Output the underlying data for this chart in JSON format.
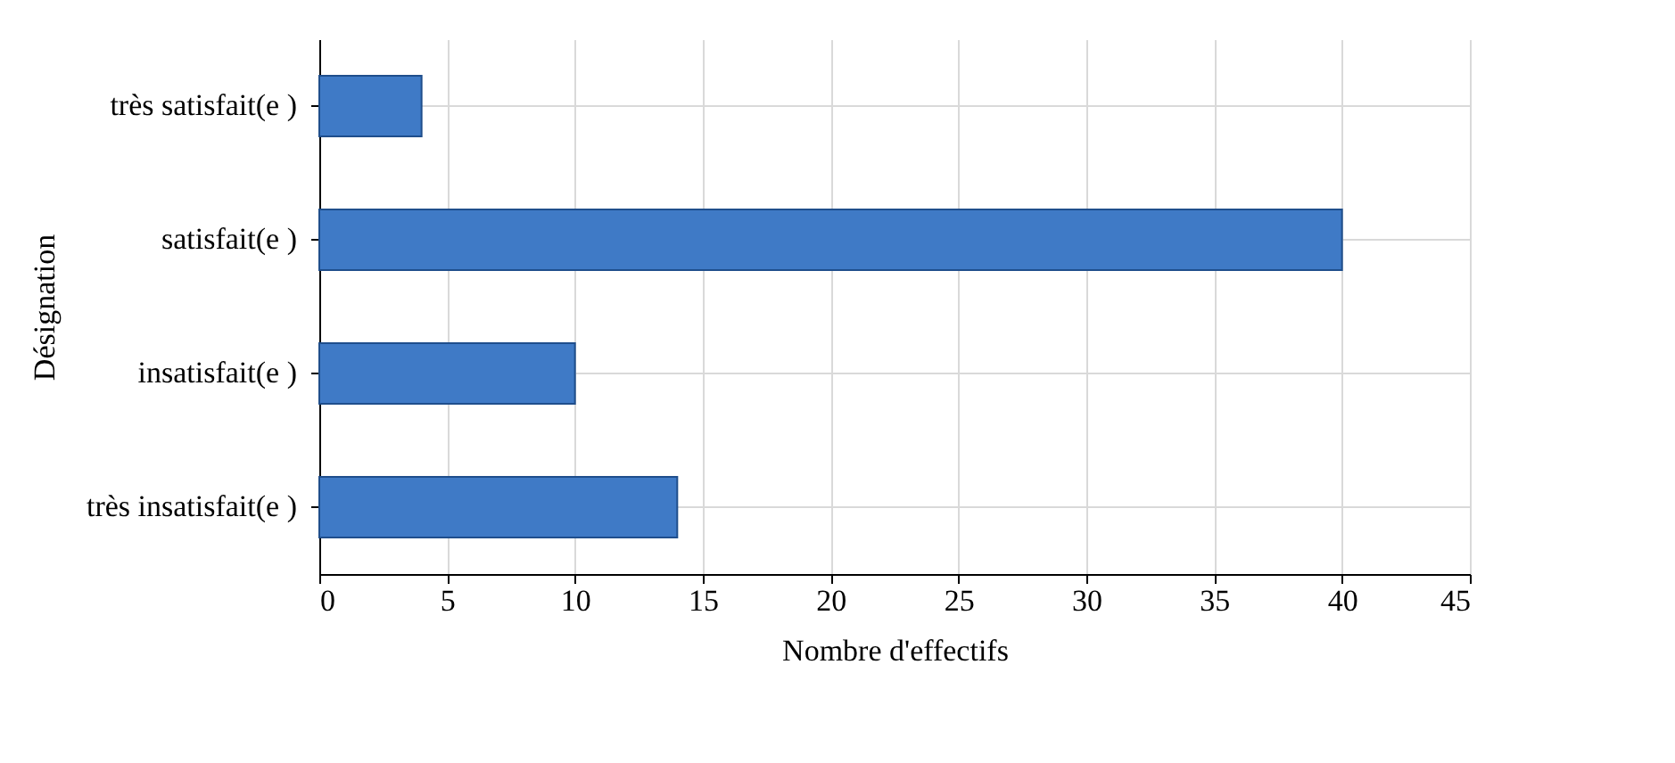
{
  "chart_data": {
    "type": "bar",
    "orientation": "horizontal",
    "xlabel": "Nombre d'effectifs",
    "ylabel": "Désignation",
    "categories": [
      "très satisfait(e )",
      "satisfait(e )",
      "insatisfait(e )",
      "très insatisfait(e )"
    ],
    "values": [
      4,
      40,
      10,
      14
    ],
    "color": "#3f7ac6",
    "xlim": [
      0,
      45
    ],
    "xticks": [
      0,
      5,
      10,
      15,
      20,
      25,
      30,
      35,
      40,
      45
    ],
    "grid": true
  }
}
